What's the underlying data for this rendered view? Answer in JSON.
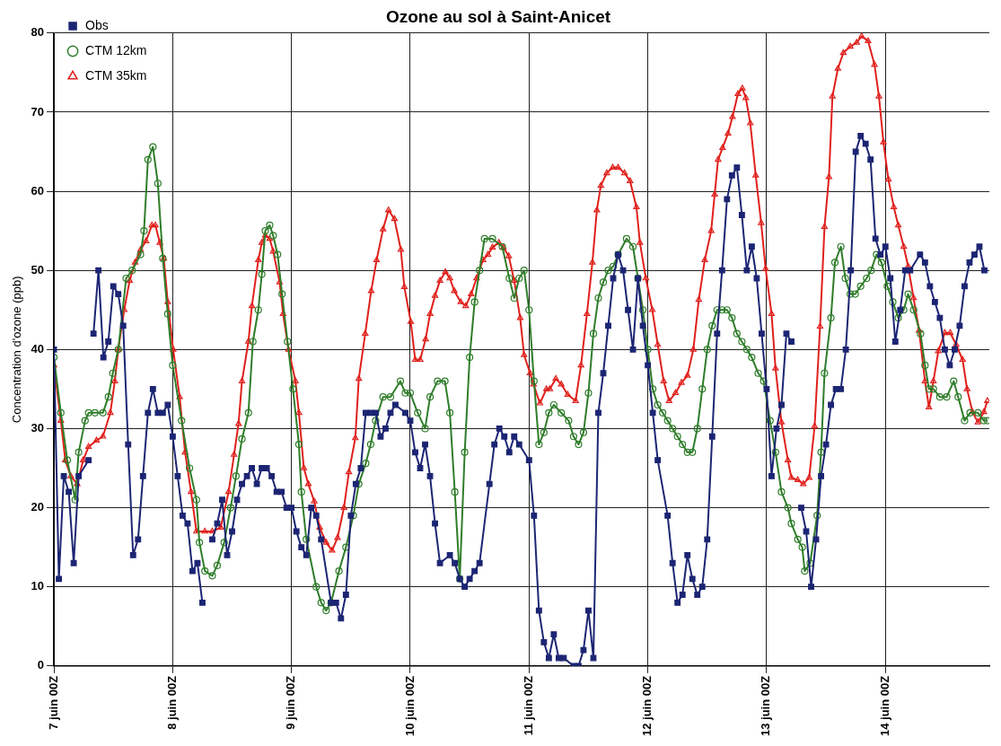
{
  "chart_data": {
    "type": "line",
    "title": "Ozone au sol à Saint-Anicet",
    "ylabel": "Concentration d'ozone (ppb)",
    "xlim": [
      "--06-07T00:00",
      "--06-14T21:00"
    ],
    "ylim": [
      0,
      80
    ],
    "xticks": [
      {
        "value": "--06-07T00:00",
        "label": "7 juin 00Z"
      },
      {
        "value": "--06-08T00:00",
        "label": "8 juin 00Z"
      },
      {
        "value": "--06-09T00:00",
        "label": "9 juin 00Z"
      },
      {
        "value": "--06-10T00:00",
        "label": "10 juin 00Z"
      },
      {
        "value": "--06-11T00:00",
        "label": "11 juin 00Z"
      },
      {
        "value": "--06-12T00:00",
        "label": "12 juin 00Z"
      },
      {
        "value": "--06-13T00:00",
        "label": "13 juin 00Z"
      },
      {
        "value": "--06-14T00:00",
        "label": "14 juin 00Z"
      }
    ],
    "yticks": [
      0,
      10,
      20,
      30,
      40,
      50,
      60,
      70,
      80
    ],
    "grid": true,
    "legend": "top left",
    "line_style": "solid",
    "series": [
      {
        "name": "Obs",
        "color": "#1c2573",
        "marker": "square",
        "x": [
          "--06-07T00:00",
          "--06-07T01:00",
          "--06-07T02:00",
          "--06-07T03:00",
          "--06-07T04:00",
          "--06-07T05:00",
          "--06-07T07:00",
          "--06-07T07:30",
          "--06-07T08:00",
          "--06-07T09:00",
          "--06-07T10:00",
          "--06-07T11:00",
          "--06-07T12:00",
          "--06-07T13:00",
          "--06-07T14:00",
          "--06-07T15:00",
          "--06-07T16:00",
          "--06-07T17:00",
          "--06-07T18:00",
          "--06-07T19:00",
          "--06-07T20:00",
          "--06-07T21:00",
          "--06-07T22:00",
          "--06-07T23:00",
          "--06-08T00:00",
          "--06-08T01:00",
          "--06-08T02:00",
          "--06-08T03:00",
          "--06-08T04:00",
          "--06-08T05:00",
          "--06-08T06:00",
          "--06-08T07:00",
          "--06-08T08:00",
          "--06-08T09:00",
          "--06-08T10:00",
          "--06-08T11:00",
          "--06-08T12:00",
          "--06-08T13:00",
          "--06-08T14:00",
          "--06-08T15:00",
          "--06-08T16:00",
          "--06-08T17:00",
          "--06-08T18:00",
          "--06-08T19:00",
          "--06-08T20:00",
          "--06-08T21:00",
          "--06-08T22:00",
          "--06-08T23:00",
          "--06-09T00:00",
          "--06-09T01:00",
          "--06-09T02:00",
          "--06-09T03:00",
          "--06-09T04:00",
          "--06-09T05:00",
          "--06-09T06:00",
          "--06-09T08:00",
          "--06-09T09:00",
          "--06-09T10:00",
          "--06-09T11:00",
          "--06-09T12:00",
          "--06-09T13:00",
          "--06-09T14:00",
          "--06-09T15:00",
          "--06-09T16:00",
          "--06-09T17:00",
          "--06-09T18:00",
          "--06-09T19:00",
          "--06-09T20:00",
          "--06-09T21:00",
          "--06-09T23:00",
          "--06-10T00:00",
          "--06-10T01:00",
          "--06-10T02:00",
          "--06-10T03:00",
          "--06-10T04:00",
          "--06-10T05:00",
          "--06-10T06:00",
          "--06-10T08:00",
          "--06-10T09:00",
          "--06-10T10:00",
          "--06-10T11:00",
          "--06-10T12:00",
          "--06-10T13:00",
          "--06-10T14:00",
          "--06-10T16:00",
          "--06-10T17:00",
          "--06-10T18:00",
          "--06-10T19:00",
          "--06-10T20:00",
          "--06-10T21:00",
          "--06-10T22:00",
          "--06-11T00:00",
          "--06-11T01:00",
          "--06-11T02:00",
          "--06-11T03:00",
          "--06-11T04:00",
          "--06-11T05:00",
          "--06-11T06:00",
          "--06-11T07:00",
          "--06-11T09:00",
          "--06-11T10:00",
          "--06-11T11:00",
          "--06-11T12:00",
          "--06-11T13:00",
          "--06-11T14:00",
          "--06-11T15:00",
          "--06-11T16:00",
          "--06-11T17:00",
          "--06-11T18:00",
          "--06-11T19:00",
          "--06-11T20:00",
          "--06-11T21:00",
          "--06-11T22:00",
          "--06-11T23:00",
          "--06-12T00:00",
          "--06-12T01:00",
          "--06-12T02:00",
          "--06-12T04:00",
          "--06-12T05:00",
          "--06-12T06:00",
          "--06-12T07:00",
          "--06-12T08:00",
          "--06-12T09:00",
          "--06-12T10:00",
          "--06-12T11:00",
          "--06-12T12:00",
          "--06-12T13:00",
          "--06-12T14:00",
          "--06-12T15:00",
          "--06-12T16:00",
          "--06-12T17:00",
          "--06-12T18:00",
          "--06-12T19:00",
          "--06-12T20:00",
          "--06-12T21:00",
          "--06-12T22:00",
          "--06-12T23:00",
          "--06-13T00:00",
          "--06-13T01:00",
          "--06-13T02:00",
          "--06-13T03:00",
          "--06-13T04:00",
          "--06-13T05:00",
          "--06-13T06:00",
          "--06-13T07:00",
          "--06-13T08:00",
          "--06-13T09:00",
          "--06-13T10:00",
          "--06-13T11:00",
          "--06-13T12:00",
          "--06-13T13:00",
          "--06-13T14:00",
          "--06-13T15:00",
          "--06-13T16:00",
          "--06-13T17:00",
          "--06-13T18:00",
          "--06-13T19:00",
          "--06-13T20:00",
          "--06-13T21:00",
          "--06-13T22:00",
          "--06-13T23:00",
          "--06-14T00:00",
          "--06-14T01:00",
          "--06-14T02:00",
          "--06-14T03:00",
          "--06-14T04:00",
          "--06-14T05:00",
          "--06-14T07:00",
          "--06-14T08:00",
          "--06-14T09:00",
          "--06-14T10:00",
          "--06-14T11:00",
          "--06-14T12:00",
          "--06-14T13:00",
          "--06-14T14:00",
          "--06-14T15:00",
          "--06-14T16:00",
          "--06-14T17:00",
          "--06-14T18:00",
          "--06-14T19:00",
          "--06-14T20:00"
        ],
        "values": [
          40,
          11,
          24,
          22,
          13,
          24,
          26,
          null,
          42,
          50,
          39,
          41,
          48,
          47,
          43,
          28,
          14,
          16,
          24,
          32,
          35,
          32,
          32,
          33,
          29,
          24,
          19,
          18,
          12,
          13,
          8,
          null,
          16,
          18,
          21,
          14,
          17,
          21,
          23,
          24,
          25,
          23,
          25,
          25,
          24,
          22,
          22,
          20,
          20,
          17,
          15,
          14,
          20,
          19,
          16,
          8,
          8,
          6,
          9,
          19,
          23,
          25,
          32,
          32,
          32,
          29,
          30,
          32,
          33,
          32,
          31,
          27,
          25,
          28,
          24,
          18,
          13,
          14,
          13,
          11,
          10,
          11,
          12,
          13,
          23,
          28,
          30,
          29,
          27,
          29,
          28,
          26,
          19,
          7,
          3,
          1,
          4,
          1,
          1,
          0,
          0,
          2,
          7,
          1,
          32,
          37,
          43,
          49,
          52,
          50,
          45,
          40,
          49,
          43,
          38,
          32,
          26,
          19,
          13,
          8,
          9,
          14,
          11,
          9,
          10,
          16,
          29,
          42,
          50,
          59,
          62,
          63,
          57,
          50,
          53,
          49,
          42,
          35,
          24,
          30,
          33,
          42,
          41,
          null,
          20,
          17,
          10,
          16,
          24,
          28,
          33,
          35,
          35,
          40,
          50,
          65,
          67,
          66,
          64,
          54,
          52,
          53,
          49,
          41,
          45,
          50,
          50,
          52,
          51,
          48,
          46,
          44,
          40,
          38,
          40,
          43,
          48,
          51,
          52,
          53,
          50
        ]
      },
      {
        "name": "CTM 12km",
        "color": "#2f7d2a",
        "marker": "circle",
        "x": [
          "--06-07T00:00",
          "--06-07T01:24",
          "--06-07T02:42",
          "--06-07T04:18",
          "--06-07T05:00",
          "--06-07T06:18",
          "--06-07T07:00",
          "--06-07T08:18",
          "--06-07T09:54",
          "--06-07T11:00",
          "--06-07T11:54",
          "--06-07T13:00",
          "--06-07T14:36",
          "--06-07T15:48",
          "--06-07T17:30",
          "--06-07T18:12",
          "--06-07T19:00",
          "--06-07T20:00",
          "--06-07T21:00",
          "--06-07T22:00",
          "--06-07T23:00",
          "--06-08T00:00",
          "--06-08T01:48",
          "--06-08T03:24",
          "--06-08T04:48",
          "--06-08T05:24",
          "--06-08T06:30",
          "--06-08T08:00",
          "--06-08T09:00",
          "--06-08T10:24",
          "--06-08T11:42",
          "--06-08T12:48",
          "--06-08T14:00",
          "--06-08T15:18",
          "--06-08T16:12",
          "--06-08T17:18",
          "--06-08T18:00",
          "--06-08T18:42",
          "--06-08T19:36",
          "--06-08T20:18",
          "--06-08T21:12",
          "--06-08T22:06",
          "--06-08T23:12",
          "--06-09T00:18",
          "--06-09T01:30",
          "--06-09T02:00",
          "--06-09T03:00",
          "--06-09T05:00",
          "--06-09T06:00",
          "--06-09T07:00",
          "--06-09T08:00",
          "--06-09T09:36",
          "--06-09T11:00",
          "--06-09T12:30",
          "--06-09T13:36",
          "--06-09T15:00",
          "--06-09T16:00",
          "--06-09T17:00",
          "--06-09T18:30",
          "--06-09T20:00",
          "--06-09T22:00",
          "--06-09T23:00",
          "--06-10T00:00",
          "--06-10T01:30",
          "--06-10T03:00",
          "--06-10T04:00",
          "--06-10T05:30",
          "--06-10T07:00",
          "--06-10T08:00",
          "--06-10T09:00",
          "--06-10T10:00",
          "--06-10T11:00",
          "--06-10T12:00",
          "--06-10T13:00",
          "--06-10T14:00",
          "--06-10T15:00",
          "--06-10T16:36",
          "--06-10T18:36",
          "--06-10T20:00",
          "--06-10T21:00",
          "--06-10T22:00",
          "--06-10T23:00",
          "--06-11T00:00",
          "--06-11T01:00",
          "--06-11T02:00",
          "--06-11T03:00",
          "--06-11T04:00",
          "--06-11T05:00",
          "--06-11T06:30",
          "--06-11T08:00",
          "--06-11T09:00",
          "--06-11T10:00",
          "--06-11T11:00",
          "--06-11T12:00",
          "--06-11T13:00",
          "--06-11T14:00",
          "--06-11T15:00",
          "--06-11T16:00",
          "--06-11T17:00",
          "--06-11T18:00",
          "--06-11T19:42",
          "--06-11T21:00",
          "--06-11T22:00",
          "--06-11T23:00",
          "--06-12T00:00",
          "--06-12T01:00",
          "--06-12T02:00",
          "--06-12T03:00",
          "--06-12T04:00",
          "--06-12T05:00",
          "--06-12T06:00",
          "--06-12T07:00",
          "--06-12T08:00",
          "--06-12T09:00",
          "--06-12T10:00",
          "--06-12T11:00",
          "--06-12T12:00",
          "--06-12T13:00",
          "--06-12T14:00",
          "--06-12T15:00",
          "--06-12T16:00",
          "--06-12T17:00",
          "--06-12T18:00",
          "--06-12T19:00",
          "--06-12T20:00",
          "--06-12T21:00",
          "--06-12T22:18",
          "--06-12T23:24",
          "--06-13T00:42",
          "--06-13T01:48",
          "--06-13T03:00",
          "--06-13T04:18",
          "--06-13T05:00",
          "--06-13T06:18",
          "--06-13T07:12",
          "--06-13T07:42",
          "--06-13T08:48",
          "--06-13T10:12",
          "--06-13T11:00",
          "--06-13T11:42",
          "--06-13T13:00",
          "--06-13T13:48",
          "--06-13T15:00",
          "--06-13T15:54",
          "--06-13T16:54",
          "--06-13T17:54",
          "--06-13T19:00",
          "--06-13T20:12",
          "--06-13T21:06",
          "--06-13T22:12",
          "--06-13T23:12",
          "--06-14T00:24",
          "--06-14T01:30",
          "--06-14T02:36",
          "--06-14T03:42",
          "--06-14T04:36",
          "--06-14T05:42",
          "--06-14T07:06",
          "--06-14T08:00",
          "--06-14T08:48",
          "--06-14T09:42",
          "--06-14T11:00",
          "--06-14T12:24",
          "--06-14T13:48",
          "--06-14T14:42",
          "--06-14T16:00",
          "--06-14T17:06",
          "--06-14T18:42",
          "--06-14T19:54",
          "--06-14T20:36"
        ],
        "values": [
          39,
          32,
          26,
          21,
          27,
          31,
          32,
          32,
          32,
          34,
          37,
          40,
          49,
          50,
          52,
          55,
          64,
          65.6,
          61,
          51.5,
          44.5,
          38,
          31,
          25,
          21,
          15.6,
          12,
          11.4,
          12.7,
          15.6,
          20,
          24,
          28.7,
          32,
          41,
          45,
          49.5,
          55,
          55.7,
          54.4,
          52,
          47,
          41,
          35,
          28,
          22,
          16,
          10,
          8,
          7,
          8,
          12,
          15,
          19,
          23,
          25.6,
          28,
          31,
          34,
          34,
          36,
          34.5,
          34.5,
          32,
          30,
          34,
          36,
          36,
          32,
          22,
          11,
          27,
          39,
          46,
          50,
          54,
          54,
          53,
          49,
          46.5,
          49,
          50,
          45,
          36,
          28,
          29.5,
          32,
          33,
          32,
          31,
          29,
          28,
          29.5,
          34.5,
          42,
          46.5,
          48.5,
          50,
          50.5,
          52,
          54,
          53,
          49,
          45,
          40,
          35,
          33,
          32,
          31,
          30,
          29,
          28,
          27,
          27,
          30,
          35,
          40,
          43,
          45,
          45,
          45,
          44,
          42,
          41,
          40,
          39,
          37,
          36,
          31,
          27,
          22,
          20,
          18,
          16,
          15,
          12,
          13,
          19,
          27,
          37,
          44,
          51,
          53,
          49,
          47,
          47,
          48,
          49,
          50,
          52,
          51,
          48,
          46,
          44,
          45,
          47,
          45,
          42,
          38,
          35,
          35,
          34,
          34,
          36,
          34,
          31,
          32,
          32,
          31,
          31
        ]
      },
      {
        "name": "CTM 35km",
        "color": "#e0201c",
        "marker": "triangle",
        "x": [
          "--06-07T00:00",
          "--06-07T01:24",
          "--06-07T02:18",
          "--06-07T03:24",
          "--06-07T04:42",
          "--06-07T05:54",
          "--06-07T07:00",
          "--06-07T08:36",
          "--06-07T09:54",
          "--06-07T11:24",
          "--06-07T12:18",
          "--06-07T13:00",
          "--06-07T14:12",
          "--06-07T15:18",
          "--06-07T16:24",
          "--06-07T17:30",
          "--06-07T18:36",
          "--06-07T19:48",
          "--06-07T20:30",
          "--06-07T21:24",
          "--06-07T22:12",
          "--06-07T23:00",
          "--06-08T00:06",
          "--06-08T01:24",
          "--06-08T02:30",
          "--06-08T03:42",
          "--06-08T04:48",
          "--06-08T06:30",
          "--06-08T08:00",
          "--06-08T09:42",
          "--06-08T11:18",
          "--06-08T12:24",
          "--06-08T13:18",
          "--06-08T14:00",
          "--06-08T15:18",
          "--06-08T16:00",
          "--06-08T17:18",
          "--06-08T18:00",
          "--06-08T18:42",
          "--06-08T19:36",
          "--06-08T20:18",
          "--06-08T21:36",
          "--06-08T22:18",
          "--06-08T23:24",
          "--06-09T00:48",
          "--06-09T01:30",
          "--06-09T02:30",
          "--06-09T03:24",
          "--06-09T04:36",
          "--06-09T05:42",
          "--06-09T07:00",
          "--06-09T08:12",
          "--06-09T09:18",
          "--06-09T10:36",
          "--06-09T11:36",
          "--06-09T12:54",
          "--06-09T13:36",
          "--06-09T14:54",
          "--06-09T16:06",
          "--06-09T17:12",
          "--06-09T18:30",
          "--06-09T19:36",
          "--06-09T20:48",
          "--06-09T22:06",
          "--06-09T22:48",
          "--06-10T00:06",
          "--06-10T01:00",
          "--06-10T02:00",
          "--06-10T03:06",
          "--06-10T04:00",
          "--06-10T05:00",
          "--06-10T06:00",
          "--06-10T07:06",
          "--06-10T08:00",
          "--06-10T08:54",
          "--06-10T10:12",
          "--06-10T11:12",
          "--06-10T12:18",
          "--06-10T13:24",
          "--06-10T14:42",
          "--06-10T15:42",
          "--06-10T16:36",
          "--06-10T17:54",
          "--06-10T18:48",
          "--06-10T19:54",
          "--06-10T21:00",
          "--06-10T22:12",
          "--06-10T23:00",
          "--06-11T00:12",
          "--06-11T00:54",
          "--06-11T02:12",
          "--06-11T03:30",
          "--06-11T04:12",
          "--06-11T05:24",
          "--06-11T06:30",
          "--06-11T07:48",
          "--06-11T09:24",
          "--06-11T10:30",
          "--06-11T11:42",
          "--06-11T12:48",
          "--06-11T13:42",
          "--06-11T14:30",
          "--06-11T15:42",
          "--06-11T16:54",
          "--06-11T18:00",
          "--06-11T19:18",
          "--06-11T20:24",
          "--06-11T21:42",
          "--06-11T22:24",
          "--06-11T23:36",
          "--06-12T00:54",
          "--06-12T02:00",
          "--06-12T03:12",
          "--06-12T04:18",
          "--06-12T05:36",
          "--06-12T06:48",
          "--06-12T08:00",
          "--06-12T09:12",
          "--06-12T10:18",
          "--06-12T11:30",
          "--06-12T12:48",
          "--06-12T13:30",
          "--06-12T14:12",
          "--06-12T15:06",
          "--06-12T16:12",
          "--06-12T17:06",
          "--06-12T18:12",
          "--06-12T19:06",
          "--06-12T19:48",
          "--06-12T20:42",
          "--06-12T21:48",
          "--06-12T22:54",
          "--06-12T23:48",
          "--06-13T01:00",
          "--06-13T01:48",
          "--06-13T03:00",
          "--06-13T04:18",
          "--06-13T05:00",
          "--06-13T06:18",
          "--06-13T07:24",
          "--06-13T08:36",
          "--06-13T09:42",
          "--06-13T10:48",
          "--06-13T11:42",
          "--06-13T12:36",
          "--06-13T13:18",
          "--06-13T14:24",
          "--06-13T15:30",
          "--06-13T16:54",
          "--06-13T18:12",
          "--06-13T19:12",
          "--06-13T20:30",
          "--06-13T21:48",
          "--06-13T22:42",
          "--06-13T23:36",
          "--06-14T00:36",
          "--06-14T01:42",
          "--06-14T02:36",
          "--06-14T03:42",
          "--06-14T04:36",
          "--06-14T05:42",
          "--06-14T06:48",
          "--06-14T08:00",
          "--06-14T08:48",
          "--06-14T09:42",
          "--06-14T10:42",
          "--06-14T12:00",
          "--06-14T13:06",
          "--06-14T14:18",
          "--06-14T15:36",
          "--06-14T16:30",
          "--06-14T17:36",
          "--06-14T18:42",
          "--06-14T19:54",
          "--06-14T20:36"
        ],
        "values": [
          38,
          31,
          26,
          24,
          23,
          26,
          27.7,
          28.5,
          29,
          32,
          36,
          40,
          45,
          48.7,
          51,
          52.6,
          53.7,
          55.7,
          55.7,
          53.5,
          51.5,
          46,
          40,
          34,
          27,
          22,
          17,
          17,
          17,
          17.5,
          22,
          26.7,
          30.6,
          36,
          41,
          45.5,
          51.3,
          53.5,
          54.4,
          54,
          52.4,
          48.5,
          44.5,
          40,
          36,
          32,
          25,
          23,
          20.8,
          17.5,
          15.6,
          14.6,
          16.2,
          20,
          24.5,
          28.8,
          36.3,
          42,
          47.4,
          51.3,
          55.2,
          57.6,
          56.5,
          52.6,
          47.9,
          43.5,
          38.7,
          38.7,
          41.3,
          44.5,
          46.8,
          48.7,
          49.8,
          49,
          47.4,
          46,
          45.5,
          47,
          49,
          51.3,
          52,
          52.9,
          53.5,
          52.9,
          51.8,
          48.7,
          44,
          39.3,
          37,
          35.6,
          33.2,
          35,
          35,
          36.3,
          35.6,
          34.3,
          33.5,
          38,
          44.5,
          51,
          57.6,
          60.7,
          62.3,
          63,
          63,
          62.3,
          61.3,
          58,
          53.5,
          49,
          45,
          40.6,
          36,
          33.5,
          34.5,
          35.8,
          36.7,
          40,
          46.3,
          51.3,
          55,
          59.6,
          64,
          65.5,
          67.3,
          69.4,
          72.3,
          73,
          71.8,
          68.6,
          62,
          56,
          50.2,
          44.5,
          37.6,
          30.8,
          26,
          23.8,
          23.5,
          23,
          23.8,
          30.3,
          42.9,
          55.5,
          61.8,
          72,
          75.5,
          77.5,
          78.3,
          78.8,
          79.6,
          79,
          76,
          72,
          66.2,
          61.5,
          58,
          55.7,
          53,
          50.5,
          46.5,
          42.4,
          36,
          32.7,
          36,
          39.8,
          42.1,
          42.1,
          40.6,
          38.7,
          35,
          32.1,
          30.8,
          32.1,
          33.5
        ]
      }
    ]
  }
}
